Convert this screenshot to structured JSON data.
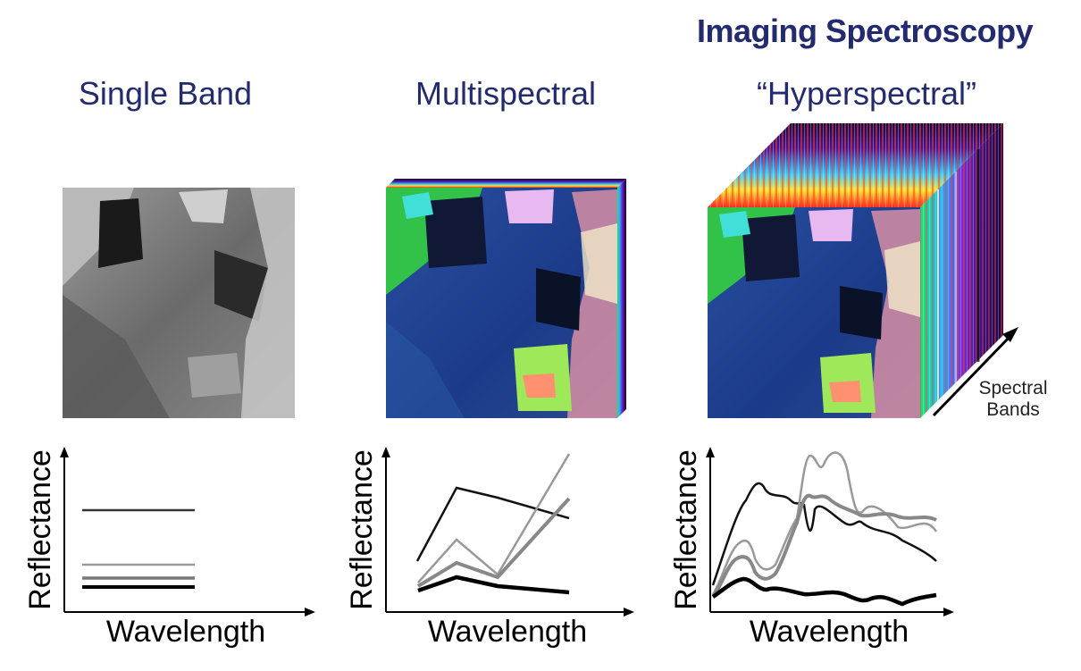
{
  "header": {
    "title": "Imaging Spectroscopy"
  },
  "columns": [
    {
      "title": "Single Band"
    },
    {
      "title": "Multispectral"
    },
    {
      "title": "“Hyperspectral”"
    }
  ],
  "cube": {
    "axis_label_line1": "Spectral",
    "axis_label_line2": "Bands"
  },
  "plots": {
    "ylabel": "Reflectance",
    "xlabel": "Wavelength"
  },
  "colors": {
    "title": "#232a6e",
    "water": "#1b3a8a",
    "vegetation": "#37d04a"
  }
}
